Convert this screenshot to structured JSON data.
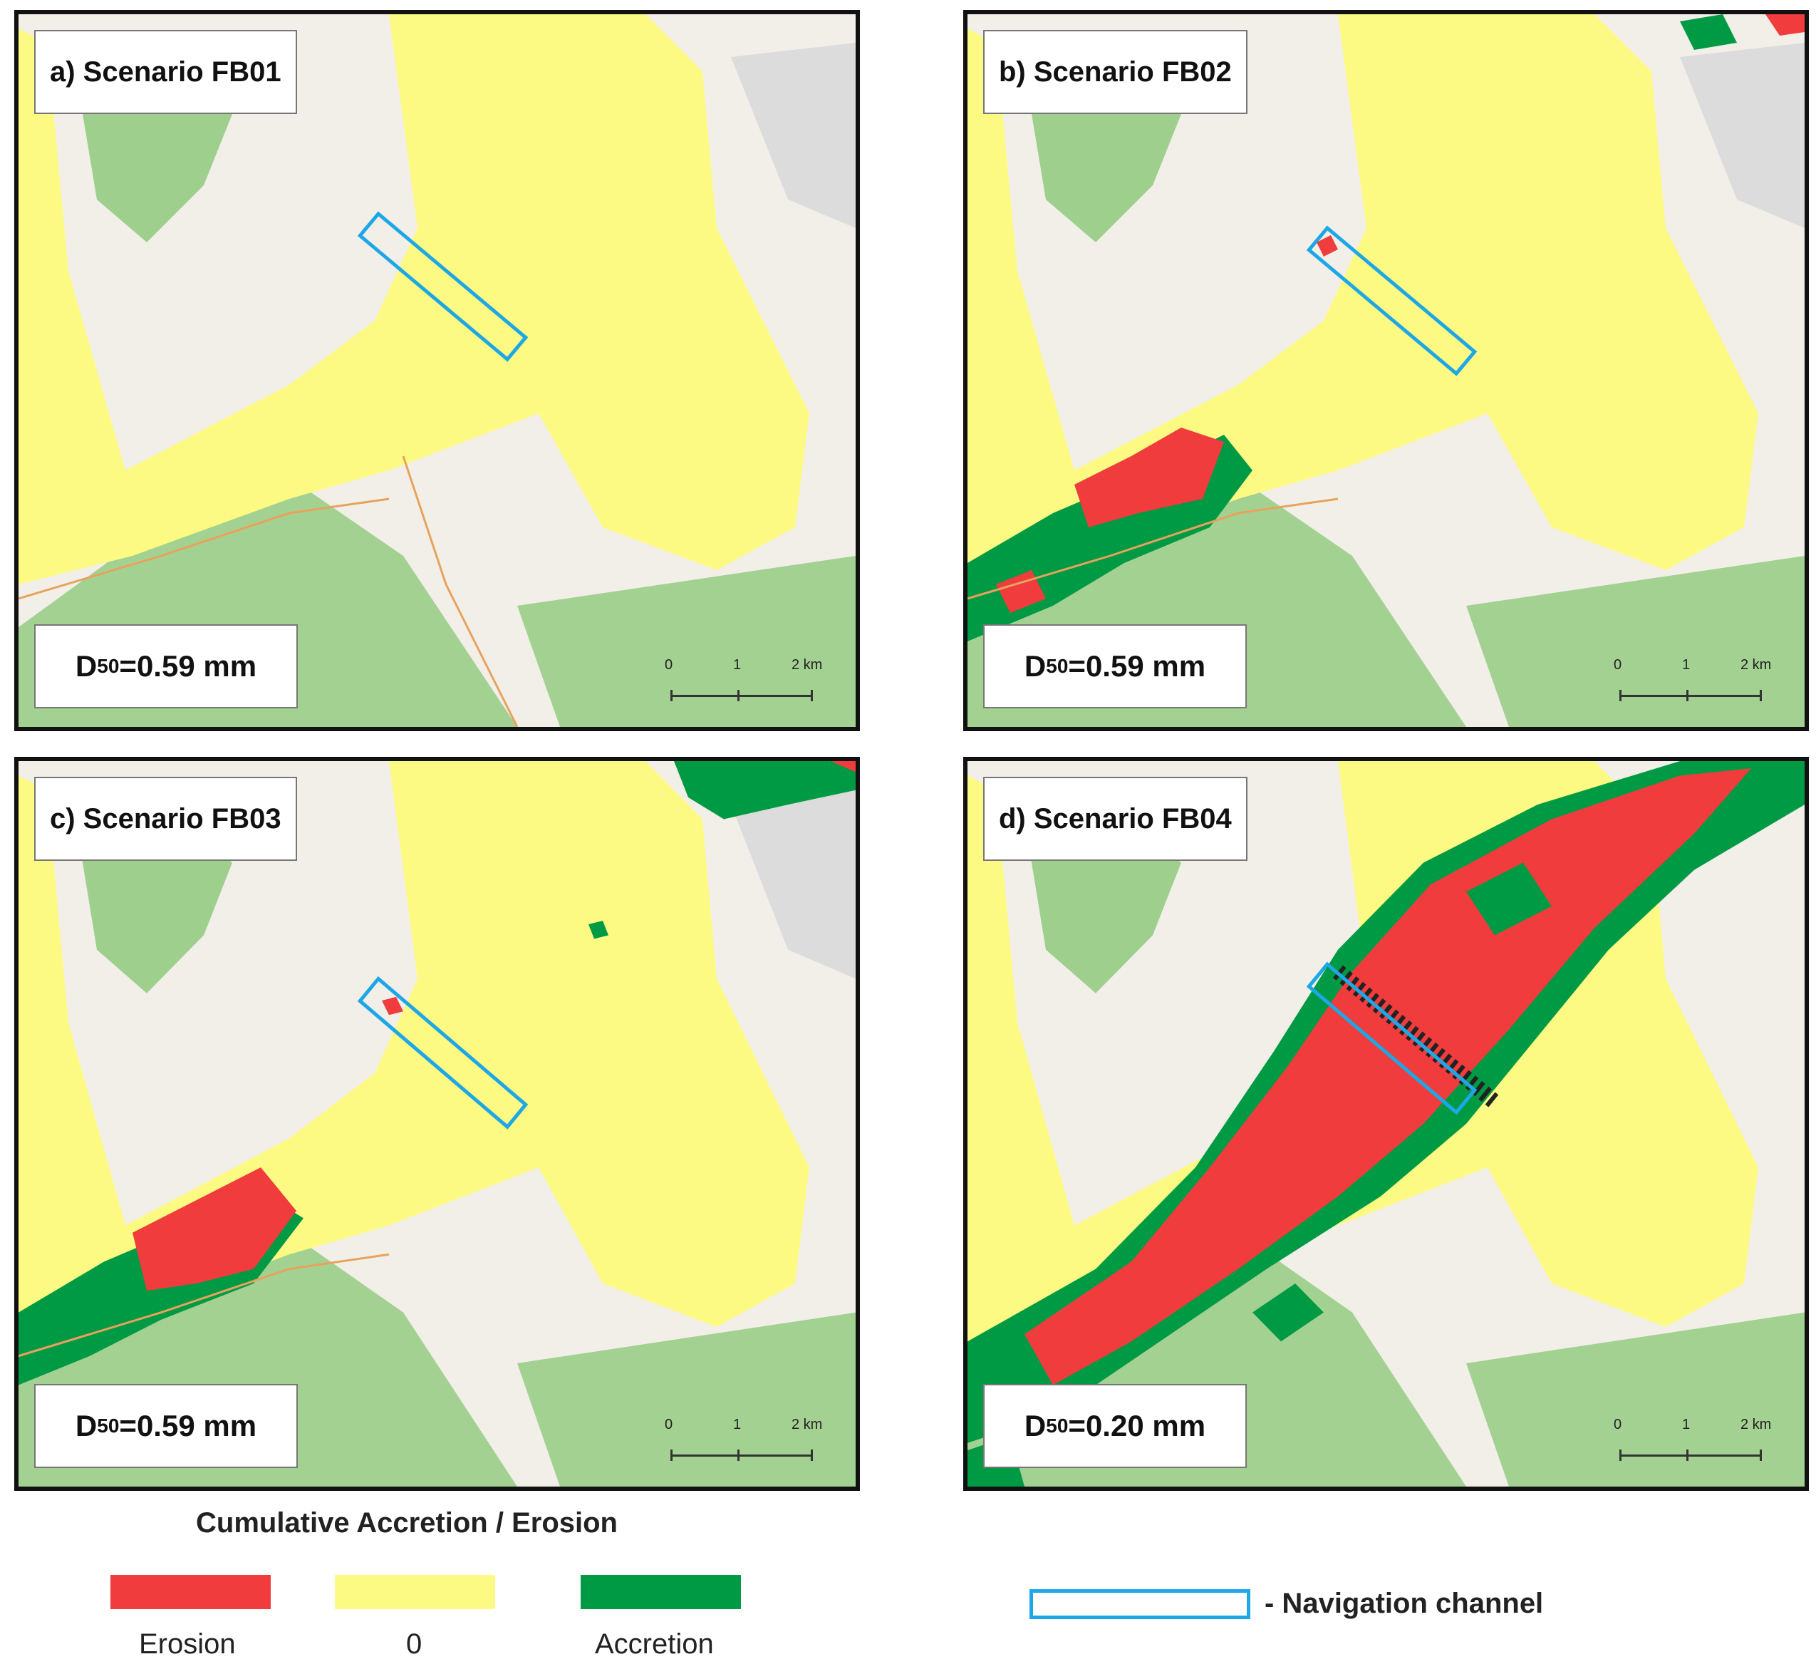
{
  "panels": [
    {
      "title": "a) Scenario FB01",
      "d50_prefix": "D",
      "d50_sub": "50",
      "d50_value": "=0.59 mm"
    },
    {
      "title": "b) Scenario FB02",
      "d50_prefix": "D",
      "d50_sub": "50",
      "d50_value": "=0.59 mm"
    },
    {
      "title": "c) Scenario FB03",
      "d50_prefix": "D",
      "d50_sub": "50",
      "d50_value": "=0.59 mm"
    },
    {
      "title": "d) Scenario FB04",
      "d50_prefix": "D",
      "d50_sub": "50",
      "d50_value": "=0.20 mm"
    }
  ],
  "scalebar": {
    "tick0": "0",
    "tick1": "1",
    "tick2": "2 km"
  },
  "legend": {
    "title": "Cumulative Accretion / Erosion",
    "items": [
      {
        "label": "Erosion",
        "color": "#f03c3c"
      },
      {
        "label": "0",
        "color": "#fdfa83"
      },
      {
        "label": "Accretion",
        "color": "#009a44"
      }
    ],
    "channel_label": "- Navigation channel",
    "channel_color": "#1ea7e6"
  },
  "colors": {
    "erosion": "#f03c3c",
    "zero": "#fdfa83",
    "accretion": "#009a44",
    "land": "#f2efe9",
    "vegetation": "#8fc97c",
    "channel": "#1ea7e6"
  }
}
